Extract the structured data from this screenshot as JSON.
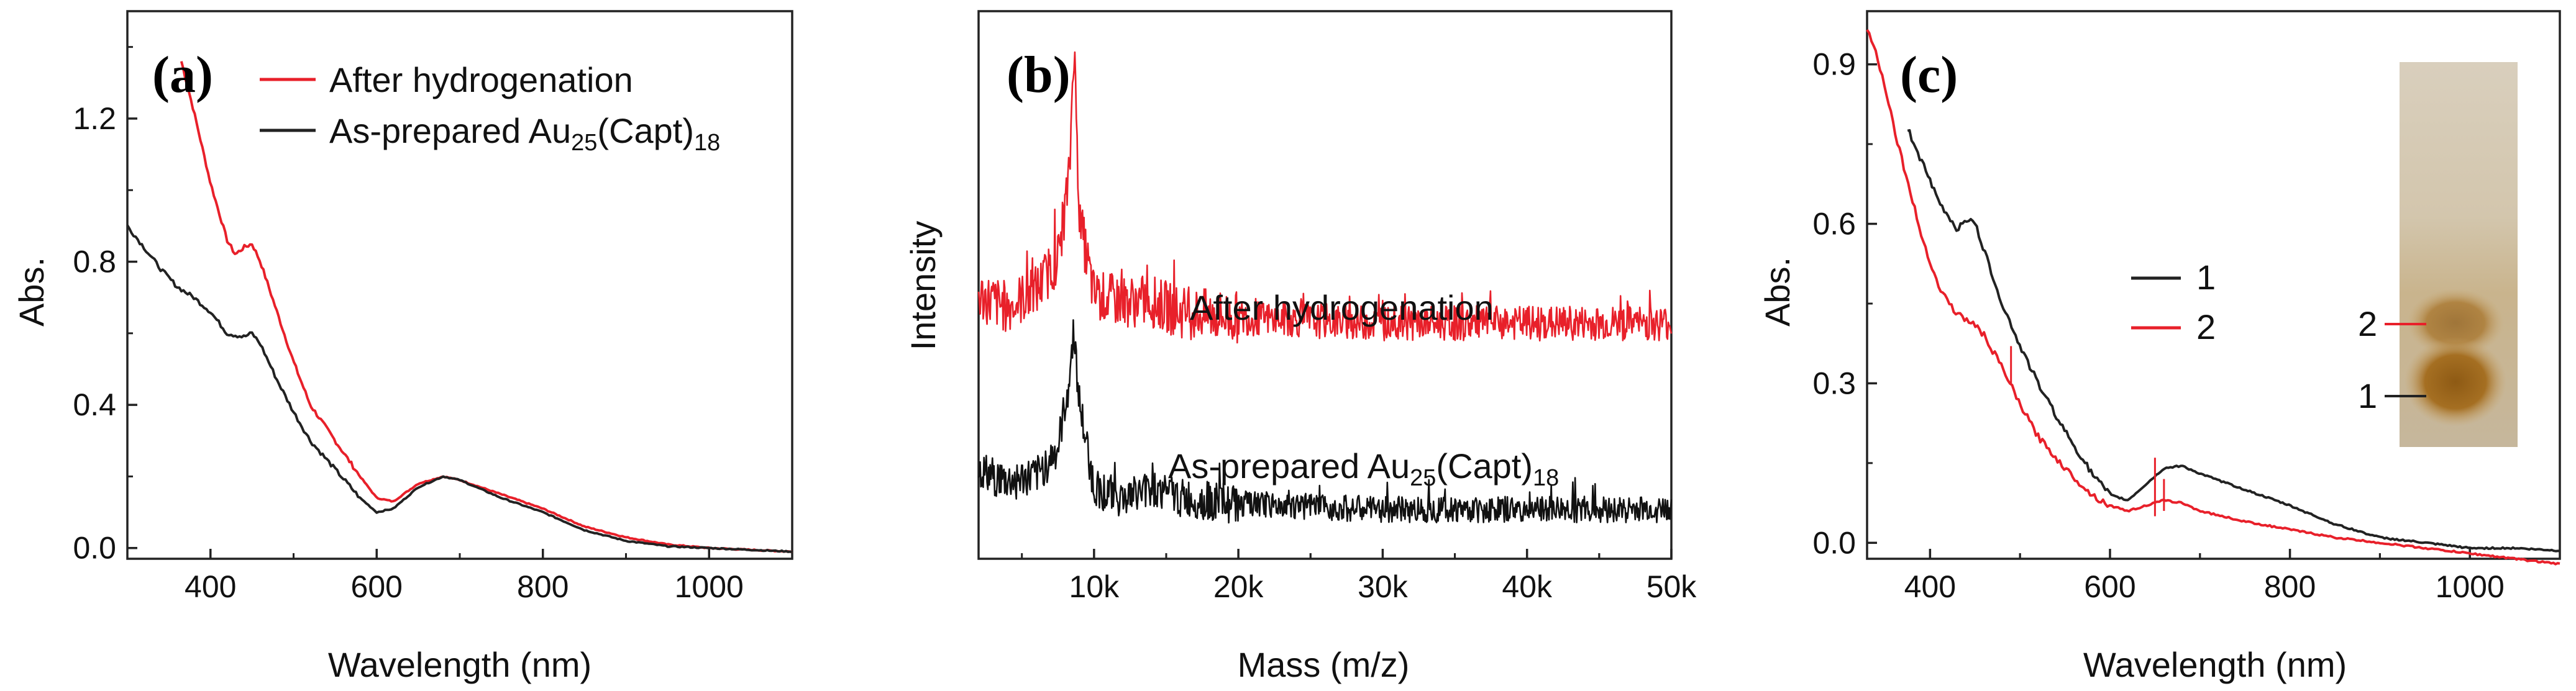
{
  "chart_data": [
    {
      "type": "line",
      "panel_label": "(a)",
      "xlabel": "Wavelength (nm)",
      "ylabel": "Abs.",
      "xlim": [
        300,
        1100
      ],
      "ylim": [
        -0.03,
        1.5
      ],
      "xticks": [
        400,
        600,
        800,
        1000
      ],
      "yticks": [
        0.0,
        0.4,
        0.8,
        1.2
      ],
      "xtick_labels": [
        "400",
        "600",
        "800",
        "1000"
      ],
      "ytick_labels": [
        "0.0",
        "0.4",
        "0.8",
        "1.2"
      ],
      "legend": [
        {
          "text": "After hydrogenation",
          "color": "#e8202a"
        },
        {
          "text_main": "As-prepared Au",
          "sub1": "25",
          "text_mid": "(Capt)",
          "sub2": "18",
          "color": "#222222"
        }
      ],
      "series": [
        {
          "name": "After hydrogenation",
          "color": "#e8202a",
          "x": [
            365,
            380,
            400,
            420,
            430,
            440,
            450,
            460,
            480,
            500,
            520,
            550,
            580,
            600,
            620,
            650,
            680,
            700,
            750,
            800,
            850,
            900,
            950,
            1000,
            1050,
            1100
          ],
          "y": [
            1.36,
            1.22,
            1.02,
            0.86,
            0.82,
            0.84,
            0.85,
            0.8,
            0.66,
            0.52,
            0.4,
            0.3,
            0.2,
            0.14,
            0.13,
            0.18,
            0.2,
            0.19,
            0.15,
            0.11,
            0.06,
            0.03,
            0.01,
            0.0,
            -0.005,
            -0.01
          ]
        },
        {
          "name": "As-prepared Au25(Capt)18",
          "color": "#222222",
          "x": [
            300,
            320,
            340,
            360,
            380,
            400,
            420,
            440,
            450,
            460,
            480,
            500,
            520,
            550,
            580,
            600,
            620,
            650,
            680,
            700,
            750,
            800,
            850,
            900,
            950,
            1000,
            1050,
            1100
          ],
          "y": [
            0.9,
            0.84,
            0.78,
            0.73,
            0.7,
            0.66,
            0.6,
            0.59,
            0.6,
            0.57,
            0.47,
            0.38,
            0.3,
            0.22,
            0.14,
            0.1,
            0.11,
            0.17,
            0.2,
            0.19,
            0.14,
            0.1,
            0.05,
            0.02,
            0.005,
            0.0,
            -0.005,
            -0.01
          ]
        }
      ]
    },
    {
      "type": "line",
      "panel_label": "(b)",
      "xlabel": "Mass (m/z)",
      "ylabel": "Intensity",
      "xlim": [
        2000,
        50000
      ],
      "ylim": [
        0,
        1
      ],
      "xticks": [
        10000,
        20000,
        30000,
        40000,
        50000
      ],
      "xtick_labels": [
        "10k",
        "20k",
        "30k",
        "40k",
        "50k"
      ],
      "annotations": [
        {
          "text": "After hydrogenation",
          "color": "#111111"
        },
        {
          "text_main": "As-prepared Au",
          "sub1": "25",
          "text_mid": "(Capt)",
          "sub2": "18",
          "color": "#111111"
        }
      ],
      "series": [
        {
          "name": "After hydrogenation",
          "color": "#e8202a",
          "baseline": 0.43,
          "peak_x": 8600,
          "peak_height": 0.52,
          "noise": 0.04,
          "x": [
            2000,
            4000,
            6000,
            7500,
            8300,
            8600,
            9000,
            10000,
            12000,
            14000,
            16000,
            20000,
            30000,
            40000,
            50000
          ],
          "y": [
            0.48,
            0.46,
            0.49,
            0.55,
            0.7,
            0.95,
            0.62,
            0.48,
            0.47,
            0.47,
            0.45,
            0.44,
            0.43,
            0.43,
            0.43
          ]
        },
        {
          "name": "As-prepared Au25(Capt)18",
          "color": "#111111",
          "baseline": 0.09,
          "peak_x": 8600,
          "peak_height": 0.33,
          "noise": 0.03,
          "x": [
            2000,
            4000,
            6000,
            7500,
            8300,
            8600,
            9000,
            10000,
            12000,
            14000,
            16000,
            20000,
            30000,
            40000,
            50000
          ],
          "y": [
            0.16,
            0.14,
            0.15,
            0.2,
            0.33,
            0.42,
            0.28,
            0.13,
            0.11,
            0.13,
            0.11,
            0.1,
            0.09,
            0.09,
            0.09
          ]
        }
      ]
    },
    {
      "type": "line",
      "panel_label": "(c)",
      "xlabel": "Wavelength (nm)",
      "ylabel": "Abs.",
      "xlim": [
        330,
        1100
      ],
      "ylim": [
        -0.03,
        1.0
      ],
      "xticks": [
        400,
        600,
        800,
        1000
      ],
      "yticks": [
        0.0,
        0.3,
        0.6,
        0.9
      ],
      "xtick_labels": [
        "400",
        "600",
        "800",
        "1000"
      ],
      "ytick_labels": [
        "0.0",
        "0.3",
        "0.6",
        "0.9"
      ],
      "legend": [
        {
          "text": "1",
          "color": "#222222"
        },
        {
          "text": "2",
          "color": "#e8202a"
        }
      ],
      "inset": {
        "description": "gel band photo",
        "labels": [
          {
            "text": "2",
            "color": "#e8202a"
          },
          {
            "text": "1",
            "color": "#222222"
          }
        ]
      },
      "series": [
        {
          "name": "1",
          "color": "#222222",
          "x": [
            375,
            390,
            410,
            430,
            440,
            450,
            460,
            480,
            500,
            520,
            550,
            580,
            600,
            620,
            640,
            660,
            680,
            700,
            750,
            800,
            850,
            900,
            950,
            1000,
            1050,
            1100
          ],
          "y": [
            0.78,
            0.72,
            0.64,
            0.59,
            0.61,
            0.6,
            0.55,
            0.45,
            0.37,
            0.3,
            0.21,
            0.13,
            0.09,
            0.08,
            0.11,
            0.14,
            0.145,
            0.13,
            0.1,
            0.07,
            0.035,
            0.01,
            0.0,
            -0.01,
            -0.01,
            -0.015
          ]
        },
        {
          "name": "2",
          "color": "#e8202a",
          "x": [
            330,
            340,
            350,
            360,
            375,
            390,
            410,
            430,
            440,
            450,
            460,
            480,
            500,
            520,
            550,
            580,
            600,
            620,
            640,
            660,
            680,
            700,
            750,
            800,
            850,
            900,
            950,
            1000,
            1050,
            1100
          ],
          "y": [
            0.97,
            0.92,
            0.86,
            0.78,
            0.68,
            0.58,
            0.48,
            0.43,
            0.42,
            0.41,
            0.39,
            0.33,
            0.26,
            0.2,
            0.14,
            0.09,
            0.07,
            0.06,
            0.07,
            0.08,
            0.075,
            0.06,
            0.04,
            0.025,
            0.01,
            0.0,
            -0.01,
            -0.02,
            -0.03,
            -0.04
          ]
        }
      ]
    }
  ]
}
